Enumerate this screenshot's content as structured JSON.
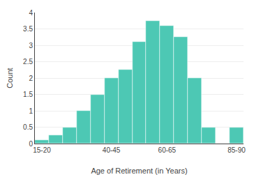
{
  "chart_data": {
    "type": "histogram",
    "xlabel": "Age of Retirement (in Years)",
    "ylabel": "Count",
    "bins": [
      15,
      20,
      25,
      30,
      35,
      40,
      45,
      50,
      55,
      60,
      65,
      70,
      75,
      80,
      85,
      90
    ],
    "values": [
      0.1,
      0.25,
      0.5,
      1.0,
      1.5,
      2.0,
      2.25,
      3.1,
      3.75,
      3.6,
      3.25,
      2.0,
      0.5,
      0.0,
      0.5
    ],
    "color": "#4dc8b4",
    "xlim": [
      15,
      90
    ],
    "xticks": [
      {
        "value": 17.5,
        "label": "15-20"
      },
      {
        "value": 42.5,
        "label": "40-45"
      },
      {
        "value": 62.5,
        "label": "60-65"
      },
      {
        "value": 87.5,
        "label": "85-90"
      }
    ],
    "ylim": [
      0,
      4
    ],
    "yticks": [
      0,
      0.5,
      1,
      1.5,
      2,
      2.5,
      3,
      3.5,
      4
    ],
    "grid": true
  }
}
